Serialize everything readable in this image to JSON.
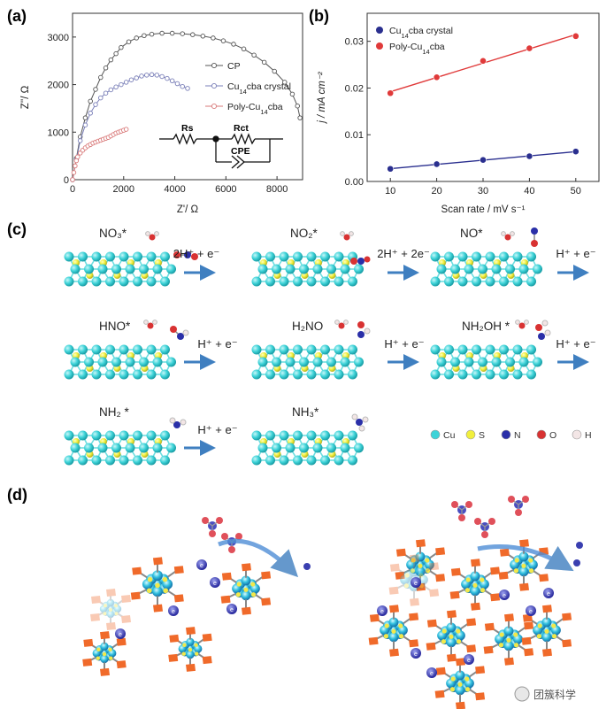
{
  "panels": {
    "a": "(a)",
    "b": "(b)",
    "c": "(c)",
    "d": "(d)"
  },
  "chart_data": [
    {
      "panel": "(a)",
      "type": "scatter",
      "xlabel": "Z'/ Ω",
      "ylabel": "Z''/ Ω",
      "xlim": [
        0,
        9000
      ],
      "ylim": [
        0,
        3500
      ],
      "xticks": [
        "0",
        "2000",
        "4000",
        "6000",
        "8000"
      ],
      "yticks": [
        "0",
        "1000",
        "2000",
        "3000"
      ],
      "legend_position": "right",
      "series": [
        {
          "name": "CP",
          "color": "#555555",
          "x": [
            0,
            150,
            300,
            500,
            700,
            900,
            1100,
            1300,
            1500,
            1700,
            1900,
            2200,
            2500,
            2800,
            3100,
            3500,
            3900,
            4300,
            4700,
            5100,
            5500,
            5900,
            6300,
            6700,
            7100,
            7500,
            7900,
            8300,
            8600,
            8800,
            8900
          ],
          "y": [
            0,
            450,
            900,
            1300,
            1650,
            1900,
            2150,
            2350,
            2520,
            2650,
            2780,
            2900,
            2980,
            3030,
            3060,
            3080,
            3080,
            3070,
            3050,
            3020,
            2980,
            2920,
            2850,
            2750,
            2620,
            2470,
            2280,
            2050,
            1800,
            1550,
            1300
          ]
        },
        {
          "name": "Cu14cba crystal",
          "color": "#7a7fb8",
          "x": [
            0,
            150,
            300,
            500,
            700,
            900,
            1100,
            1300,
            1500,
            1700,
            1900,
            2100,
            2300,
            2500,
            2700,
            2900,
            3100,
            3300,
            3500,
            3700,
            3900,
            4100,
            4300,
            4500
          ],
          "y": [
            0,
            420,
            820,
            1150,
            1400,
            1580,
            1720,
            1820,
            1890,
            1950,
            2000,
            2050,
            2100,
            2140,
            2180,
            2200,
            2210,
            2200,
            2170,
            2130,
            2080,
            2020,
            1960,
            1920
          ]
        },
        {
          "name": "Poly-Cu14cba",
          "color": "#d97a7a",
          "x": [
            0,
            50,
            100,
            150,
            200,
            300,
            400,
            500,
            600,
            700,
            800,
            900,
            1000,
            1100,
            1200,
            1300,
            1400,
            1500,
            1600,
            1700,
            1800,
            1900,
            2000,
            2100
          ],
          "y": [
            0,
            150,
            290,
            400,
            480,
            560,
            620,
            670,
            710,
            740,
            770,
            790,
            810,
            830,
            850,
            870,
            890,
            920,
            950,
            980,
            1000,
            1020,
            1040,
            1060
          ]
        }
      ],
      "inset": {
        "labels": [
          "Rs",
          "Rct",
          "CPE"
        ]
      }
    },
    {
      "panel": "(b)",
      "type": "line",
      "xlabel": "Scan rate / mV s⁻¹",
      "ylabel": "j / mA cm⁻²",
      "xlim": [
        5,
        55
      ],
      "ylim": [
        0,
        0.036
      ],
      "xticks": [
        "10",
        "20",
        "30",
        "40",
        "50"
      ],
      "yticks": [
        "0.00",
        "0.01",
        "0.02",
        "0.03"
      ],
      "legend_position": "top-left",
      "x": [
        10,
        20,
        30,
        40,
        50
      ],
      "series": [
        {
          "name": "Cu14cba crystal",
          "color": "#2a2f8f",
          "values": [
            0.0027,
            0.0037,
            0.0046,
            0.0054,
            0.0064
          ]
        },
        {
          "name": "Poly-Cu14cba",
          "color": "#e03a3a",
          "values": [
            0.0189,
            0.0223,
            0.0258,
            0.0285,
            0.0311
          ]
        }
      ]
    }
  ],
  "panel_c": {
    "species": [
      "NO₃*",
      "NO₂*",
      "NO*",
      "HNO*",
      "H₂NO",
      "NH₂OH *",
      "NH₂ *",
      "NH₃*"
    ],
    "steps": [
      "2H⁺ + e⁻",
      "2H⁺ + 2e⁻",
      "H⁺ + e⁻",
      "H⁺ + e⁻",
      "H⁺ + e⁻",
      "H⁺ + e⁻",
      "H⁺ + e⁻"
    ],
    "legend": [
      {
        "label": "Cu",
        "color": "#3ed3d8"
      },
      {
        "label": "S",
        "color": "#f1ef3c"
      },
      {
        "label": "N",
        "color": "#2a2fa8"
      },
      {
        "label": "O",
        "color": "#d83232"
      },
      {
        "label": "H",
        "color": "#f3e6e6"
      }
    ]
  },
  "watermark": "团簇科学",
  "colors": {
    "cu": "#3ed3d8",
    "s": "#f1ef3c",
    "arrow": "#3f7fc0",
    "ligand": "#f06a2a"
  }
}
